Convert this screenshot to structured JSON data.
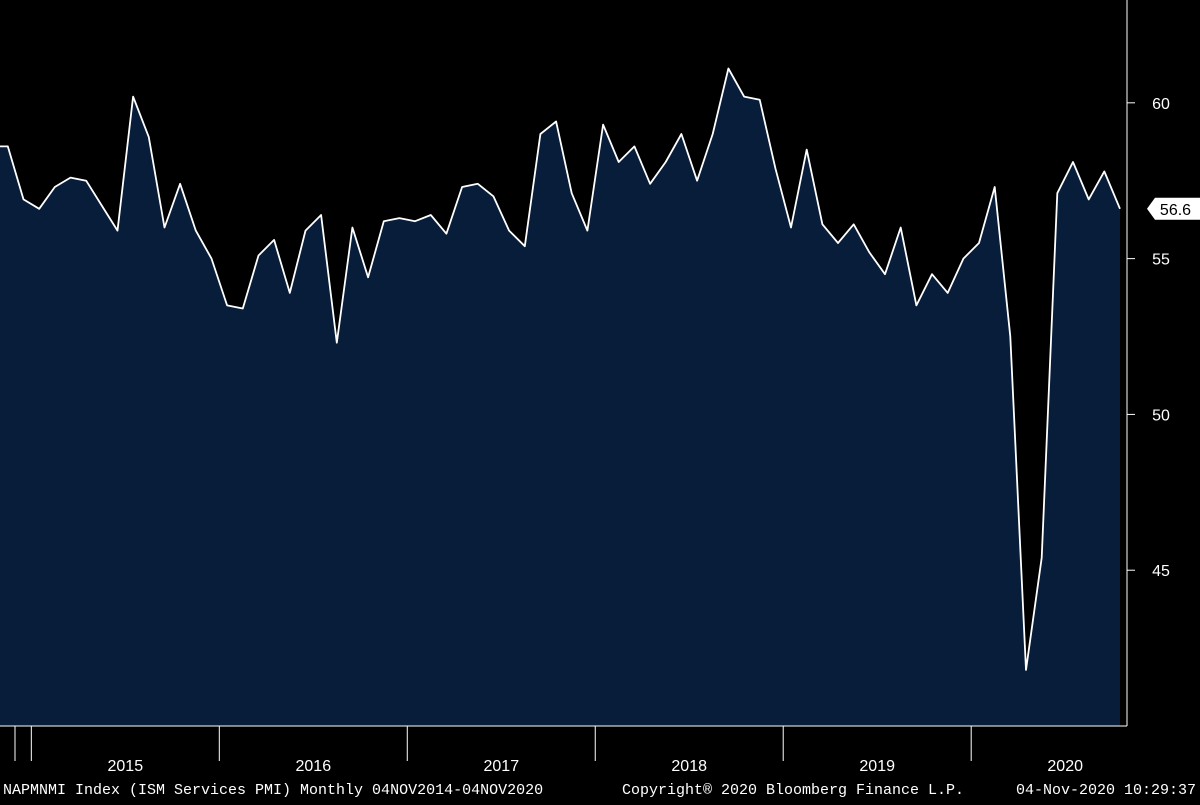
{
  "chart_data": {
    "type": "area",
    "title": "",
    "xlabel": "",
    "ylabel": "",
    "ylim": [
      40.0,
      63.3
    ],
    "xlim": [
      "2014-11",
      "2020-10"
    ],
    "y_ticks": [
      45,
      50,
      55,
      60
    ],
    "x_tick_labels": [
      "2015",
      "2016",
      "2017",
      "2018",
      "2019",
      "2020"
    ],
    "last_value_label": "56.6",
    "grid": false,
    "colors": {
      "background": "#000000",
      "fill": "#071d3a",
      "line": "#ffffff",
      "axis": "#ffffff",
      "badge_bg": "#ffffff",
      "badge_text": "#000000"
    },
    "series": [
      {
        "x": [
          "2014-11",
          "2014-12",
          "2015-01",
          "2015-02",
          "2015-03",
          "2015-04",
          "2015-05",
          "2015-06",
          "2015-07",
          "2015-08",
          "2015-09",
          "2015-10",
          "2015-11",
          "2015-12",
          "2016-01",
          "2016-02",
          "2016-03",
          "2016-04",
          "2016-05",
          "2016-06",
          "2016-07",
          "2016-08",
          "2016-09",
          "2016-10",
          "2016-11",
          "2016-12",
          "2017-01",
          "2017-02",
          "2017-03",
          "2017-04",
          "2017-05",
          "2017-06",
          "2017-07",
          "2017-08",
          "2017-09",
          "2017-10",
          "2017-11",
          "2017-12",
          "2018-01",
          "2018-02",
          "2018-03",
          "2018-04",
          "2018-05",
          "2018-06",
          "2018-07",
          "2018-08",
          "2018-09",
          "2018-10",
          "2018-11",
          "2018-12",
          "2019-01",
          "2019-02",
          "2019-03",
          "2019-04",
          "2019-05",
          "2019-06",
          "2019-07",
          "2019-08",
          "2019-09",
          "2019-10",
          "2019-11",
          "2019-12",
          "2020-01",
          "2020-02",
          "2020-03",
          "2020-04",
          "2020-05",
          "2020-06",
          "2020-07",
          "2020-08",
          "2020-09",
          "2020-10"
        ],
        "values": [
          58.6,
          56.9,
          56.6,
          57.3,
          57.6,
          57.5,
          56.7,
          55.9,
          60.2,
          58.9,
          56.0,
          57.4,
          55.9,
          55.0,
          53.5,
          53.4,
          55.1,
          55.6,
          53.9,
          55.9,
          56.4,
          52.3,
          56.0,
          54.4,
          56.2,
          56.3,
          56.2,
          56.4,
          55.8,
          57.3,
          57.4,
          57.0,
          55.9,
          55.4,
          59.0,
          59.4,
          57.1,
          55.9,
          59.3,
          58.1,
          58.6,
          57.4,
          58.1,
          59.0,
          57.5,
          59.0,
          61.1,
          60.2,
          60.1,
          57.9,
          56.0,
          58.5,
          56.1,
          55.5,
          56.1,
          55.2,
          54.5,
          56.0,
          53.5,
          54.5,
          53.9,
          55.0,
          55.5,
          57.3,
          52.5,
          41.8,
          45.4,
          57.1,
          58.1,
          56.9,
          57.8,
          56.6
        ]
      }
    ]
  },
  "footer": {
    "left": "NAPMNMI Index (ISM Services PMI)  Monthly 04NOV2014-04NOV2020",
    "center": "Copyright® 2020 Bloomberg Finance L.P.",
    "right": "04-Nov-2020 10:29:37"
  }
}
